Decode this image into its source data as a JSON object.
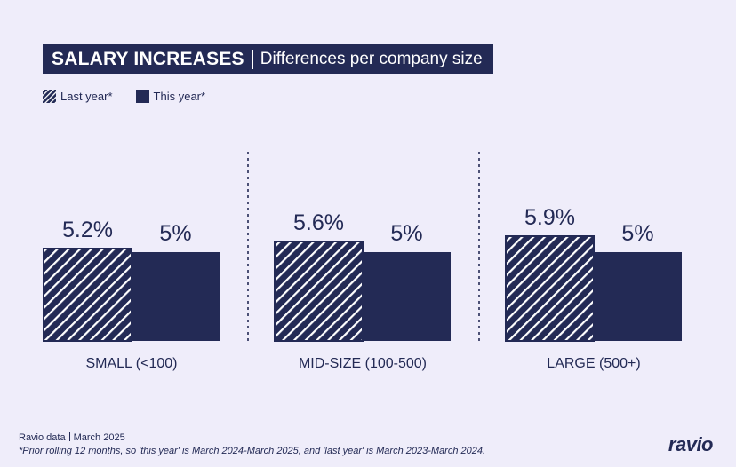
{
  "header": {
    "title_main": "SALARY INCREASES",
    "title_sub": "Differences per company size"
  },
  "legend": {
    "last_year": "Last year*",
    "this_year": "This year*"
  },
  "colors": {
    "background": "#efedfa",
    "navy": "#232a55",
    "white": "#ffffff"
  },
  "chart_data": {
    "type": "bar",
    "categories": [
      "SMALL (<100)",
      "MID-SIZE (100-500)",
      "LARGE (500+)"
    ],
    "series": [
      {
        "name": "Last year*",
        "values": [
          5.2,
          5.6,
          5.9
        ],
        "labels": [
          "5.2%",
          "5.6%",
          "5.9%"
        ],
        "pattern": "hatched"
      },
      {
        "name": "This year*",
        "values": [
          5,
          5,
          5
        ],
        "labels": [
          "5%",
          "5%",
          "5%"
        ],
        "pattern": "solid"
      }
    ],
    "unit": "%",
    "grid": false,
    "legend_position": "top-left"
  },
  "footer": {
    "source": "Ravio data",
    "date": "March 2025",
    "footnote": "*Prior rolling 12 months, so 'this year' is March 2024-March 2025, and 'last year' is March 2023-March 2024."
  },
  "brand": "ravio"
}
